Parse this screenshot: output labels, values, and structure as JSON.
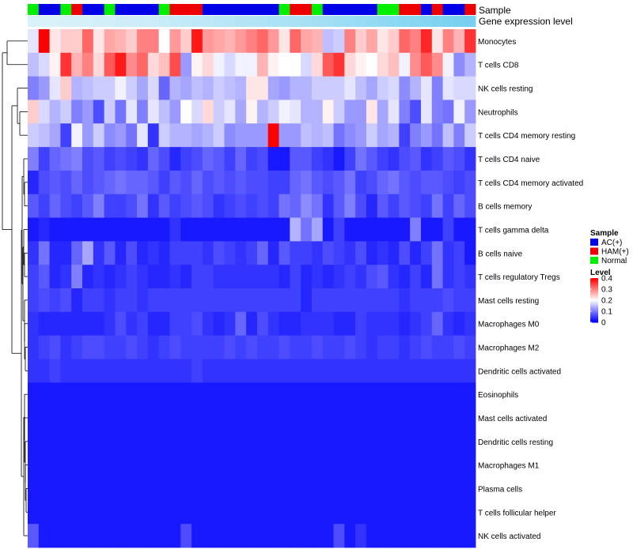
{
  "chart_data": {
    "type": "heatmap",
    "title": "",
    "annotation_labels": {
      "sample": "Sample",
      "gene_expression": "Gene expression level"
    },
    "rows": [
      "Monocytes",
      "T cells CD8",
      "NK cells resting",
      "Neutrophils",
      "T cells CD4 memory resting",
      "T cells CD4 naive",
      "T cells CD4 memory activated",
      "B cells memory",
      "T cells gamma delta",
      "B cells naive",
      "T cells regulatory  Tregs",
      "Mast cells resting",
      "Macrophages M0",
      "Macrophages M2",
      "Dendritic cells activated",
      "Eosinophils",
      "Mast cells activated",
      "Dendritic cells resting",
      "Macrophages M1",
      "Plasma cells",
      "T cells follicular helper",
      "NK cells activated"
    ],
    "sample_groups": [
      "Normal",
      "AC(+)",
      "AC(+)",
      "Normal",
      "HAM(+)",
      "AC(+)",
      "AC(+)",
      "Normal",
      "AC(+)",
      "AC(+)",
      "AC(+)",
      "AC(+)",
      "Normal",
      "HAM(+)",
      "HAM(+)",
      "HAM(+)",
      "AC(+)",
      "AC(+)",
      "AC(+)",
      "AC(+)",
      "AC(+)",
      "AC(+)",
      "AC(+)",
      "Normal",
      "HAM(+)",
      "HAM(+)",
      "Normal",
      "AC(+)",
      "AC(+)",
      "AC(+)",
      "AC(+)",
      "AC(+)",
      "Normal",
      "Normal",
      "HAM(+)",
      "HAM(+)",
      "AC(+)",
      "HAM(+)",
      "AC(+)",
      "AC(+)",
      "HAM(+)"
    ],
    "expression_level": [
      0.02,
      0.02,
      0.02,
      0.03,
      0.03,
      0.03,
      0.04,
      0.04,
      0.05,
      0.05,
      0.06,
      0.06,
      0.07,
      0.08,
      0.09,
      0.1,
      0.1,
      0.11,
      0.12,
      0.13,
      0.13,
      0.14,
      0.15,
      0.15,
      0.16,
      0.17,
      0.18,
      0.18,
      0.19,
      0.2,
      0.21,
      0.22,
      0.23,
      0.24,
      0.25,
      0.26,
      0.27,
      0.28,
      0.29,
      0.3,
      0.31
    ],
    "values": [
      [
        0.18,
        0.4,
        0.22,
        0.24,
        0.24,
        0.32,
        0.22,
        0.27,
        0.26,
        0.24,
        0.3,
        0.3,
        0.2,
        0.28,
        0.24,
        0.38,
        0.28,
        0.27,
        0.26,
        0.28,
        0.3,
        0.32,
        0.28,
        0.22,
        0.32,
        0.27,
        0.26,
        0.15,
        0.16,
        0.3,
        0.24,
        0.27,
        0.22,
        0.24,
        0.32,
        0.3,
        0.37,
        0.22,
        0.3,
        0.26,
        0.36
      ],
      [
        0.15,
        0.17,
        0.21,
        0.36,
        0.26,
        0.3,
        0.23,
        0.33,
        0.38,
        0.29,
        0.32,
        0.23,
        0.25,
        0.34,
        0.12,
        0.21,
        0.23,
        0.19,
        0.17,
        0.19,
        0.19,
        0.26,
        0.21,
        0.2,
        0.2,
        0.17,
        0.23,
        0.33,
        0.36,
        0.23,
        0.21,
        0.2,
        0.23,
        0.25,
        0.19,
        0.29,
        0.33,
        0.29,
        0.19,
        0.11,
        0.14
      ],
      [
        0.1,
        0.12,
        0.18,
        0.24,
        0.14,
        0.15,
        0.16,
        0.16,
        0.19,
        0.16,
        0.13,
        0.17,
        0.08,
        0.14,
        0.13,
        0.15,
        0.14,
        0.16,
        0.15,
        0.14,
        0.22,
        0.22,
        0.13,
        0.12,
        0.14,
        0.14,
        0.16,
        0.16,
        0.16,
        0.18,
        0.15,
        0.13,
        0.16,
        0.17,
        0.11,
        0.14,
        0.18,
        0.1,
        0.18,
        0.17,
        0.17
      ],
      [
        0.24,
        0.17,
        0.14,
        0.16,
        0.1,
        0.12,
        0.06,
        0.16,
        0.09,
        0.18,
        0.1,
        0.18,
        0.15,
        0.12,
        0.2,
        0.17,
        0.23,
        0.16,
        0.18,
        0.13,
        0.21,
        0.14,
        0.16,
        0.19,
        0.18,
        0.14,
        0.14,
        0.21,
        0.16,
        0.12,
        0.12,
        0.22,
        0.13,
        0.18,
        0.1,
        0.06,
        0.18,
        0.1,
        0.09,
        0.19,
        0.12
      ],
      [
        0.16,
        0.15,
        0.13,
        0.05,
        0.19,
        0.12,
        0.16,
        0.11,
        0.12,
        0.09,
        0.18,
        0.04,
        0.16,
        0.14,
        0.14,
        0.13,
        0.14,
        0.16,
        0.11,
        0.12,
        0.12,
        0.12,
        0.4,
        0.12,
        0.12,
        0.15,
        0.14,
        0.15,
        0.09,
        0.11,
        0.12,
        0.16,
        0.13,
        0.14,
        0.05,
        0.1,
        0.12,
        0.09,
        0.15,
        0.1,
        0.16
      ],
      [
        0.1,
        0.05,
        0.08,
        0.09,
        0.1,
        0.06,
        0.07,
        0.05,
        0.06,
        0.05,
        0.04,
        0.08,
        0.06,
        0.03,
        0.05,
        0.06,
        0.08,
        0.07,
        0.05,
        0.08,
        0.05,
        0.06,
        0.02,
        0.02,
        0.07,
        0.07,
        0.05,
        0.04,
        0.02,
        0.05,
        0.09,
        0.07,
        0.05,
        0.04,
        0.06,
        0.07,
        0.04,
        0.05,
        0.07,
        0.06,
        0.04
      ],
      [
        0.03,
        0.06,
        0.07,
        0.06,
        0.08,
        0.06,
        0.07,
        0.08,
        0.09,
        0.08,
        0.08,
        0.07,
        0.05,
        0.07,
        0.06,
        0.08,
        0.06,
        0.07,
        0.06,
        0.07,
        0.06,
        0.06,
        0.05,
        0.05,
        0.08,
        0.09,
        0.07,
        0.06,
        0.07,
        0.09,
        0.05,
        0.06,
        0.08,
        0.09,
        0.07,
        0.06,
        0.07,
        0.07,
        0.06,
        0.05,
        0.06
      ],
      [
        0.07,
        0.05,
        0.08,
        0.06,
        0.05,
        0.07,
        0.1,
        0.05,
        0.05,
        0.06,
        0.09,
        0.04,
        0.07,
        0.05,
        0.06,
        0.07,
        0.06,
        0.04,
        0.05,
        0.06,
        0.05,
        0.06,
        0.05,
        0.09,
        0.08,
        0.11,
        0.09,
        0.04,
        0.07,
        0.1,
        0.06,
        0.03,
        0.07,
        0.05,
        0.07,
        0.06,
        0.05,
        0.09,
        0.05,
        0.08,
        0.06
      ],
      [
        0.02,
        0.03,
        0.02,
        0.02,
        0.02,
        0.02,
        0.02,
        0.02,
        0.02,
        0.02,
        0.02,
        0.02,
        0.02,
        0.04,
        0.02,
        0.02,
        0.02,
        0.02,
        0.02,
        0.02,
        0.02,
        0.02,
        0.02,
        0.02,
        0.14,
        0.09,
        0.13,
        0.02,
        0.05,
        0.02,
        0.02,
        0.02,
        0.02,
        0.02,
        0.02,
        0.1,
        0.02,
        0.02,
        0.05,
        0.02,
        0.02
      ],
      [
        0.04,
        0.09,
        0.03,
        0.03,
        0.08,
        0.13,
        0.04,
        0.07,
        0.03,
        0.06,
        0.03,
        0.04,
        0.03,
        0.05,
        0.05,
        0.05,
        0.04,
        0.06,
        0.05,
        0.04,
        0.05,
        0.08,
        0.03,
        0.07,
        0.05,
        0.05,
        0.04,
        0.06,
        0.05,
        0.04,
        0.06,
        0.03,
        0.04,
        0.03,
        0.06,
        0.03,
        0.05,
        0.09,
        0.04,
        0.05,
        0.02
      ],
      [
        0.05,
        0.07,
        0.03,
        0.04,
        0.1,
        0.03,
        0.04,
        0.03,
        0.04,
        0.05,
        0.04,
        0.03,
        0.03,
        0.04,
        0.03,
        0.05,
        0.05,
        0.04,
        0.04,
        0.04,
        0.04,
        0.04,
        0.04,
        0.03,
        0.05,
        0.03,
        0.04,
        0.03,
        0.04,
        0.05,
        0.04,
        0.06,
        0.07,
        0.04,
        0.03,
        0.05,
        0.03,
        0.09,
        0.04,
        0.05,
        0.04
      ],
      [
        0.05,
        0.06,
        0.05,
        0.06,
        0.03,
        0.05,
        0.05,
        0.04,
        0.05,
        0.05,
        0.04,
        0.05,
        0.05,
        0.05,
        0.05,
        0.05,
        0.05,
        0.05,
        0.05,
        0.05,
        0.05,
        0.05,
        0.05,
        0.05,
        0.05,
        0.03,
        0.05,
        0.05,
        0.05,
        0.05,
        0.05,
        0.05,
        0.05,
        0.05,
        0.04,
        0.05,
        0.05,
        0.05,
        0.06,
        0.05,
        0.05
      ],
      [
        0.04,
        0.03,
        0.03,
        0.03,
        0.03,
        0.03,
        0.03,
        0.04,
        0.06,
        0.04,
        0.05,
        0.03,
        0.03,
        0.05,
        0.05,
        0.06,
        0.04,
        0.03,
        0.04,
        0.08,
        0.03,
        0.06,
        0.04,
        0.03,
        0.03,
        0.04,
        0.04,
        0.04,
        0.03,
        0.03,
        0.05,
        0.04,
        0.04,
        0.04,
        0.03,
        0.04,
        0.05,
        0.08,
        0.04,
        0.03,
        0.04
      ],
      [
        0.04,
        0.05,
        0.06,
        0.04,
        0.05,
        0.06,
        0.06,
        0.05,
        0.05,
        0.06,
        0.05,
        0.04,
        0.05,
        0.06,
        0.05,
        0.05,
        0.05,
        0.05,
        0.06,
        0.05,
        0.06,
        0.05,
        0.05,
        0.06,
        0.05,
        0.05,
        0.06,
        0.05,
        0.05,
        0.06,
        0.05,
        0.04,
        0.05,
        0.05,
        0.04,
        0.05,
        0.06,
        0.05,
        0.05,
        0.06,
        0.05
      ],
      [
        0.04,
        0.04,
        0.05,
        0.04,
        0.04,
        0.04,
        0.04,
        0.04,
        0.04,
        0.04,
        0.04,
        0.04,
        0.04,
        0.04,
        0.04,
        0.05,
        0.04,
        0.04,
        0.04,
        0.04,
        0.04,
        0.04,
        0.04,
        0.04,
        0.04,
        0.04,
        0.04,
        0.04,
        0.04,
        0.04,
        0.04,
        0.04,
        0.04,
        0.04,
        0.04,
        0.04,
        0.04,
        0.04,
        0.04,
        0.04,
        0.04
      ],
      [
        0.02,
        0.02,
        0.02,
        0.02,
        0.02,
        0.02,
        0.02,
        0.02,
        0.02,
        0.02,
        0.02,
        0.02,
        0.02,
        0.02,
        0.02,
        0.02,
        0.02,
        0.02,
        0.02,
        0.02,
        0.02,
        0.02,
        0.02,
        0.02,
        0.02,
        0.02,
        0.02,
        0.02,
        0.02,
        0.02,
        0.02,
        0.02,
        0.02,
        0.02,
        0.02,
        0.02,
        0.02,
        0.02,
        0.02,
        0.02,
        0.02
      ],
      [
        0.02,
        0.02,
        0.02,
        0.02,
        0.02,
        0.02,
        0.02,
        0.02,
        0.02,
        0.02,
        0.02,
        0.02,
        0.02,
        0.02,
        0.02,
        0.02,
        0.02,
        0.02,
        0.02,
        0.02,
        0.02,
        0.02,
        0.02,
        0.02,
        0.02,
        0.02,
        0.02,
        0.02,
        0.02,
        0.02,
        0.02,
        0.02,
        0.02,
        0.02,
        0.02,
        0.02,
        0.02,
        0.02,
        0.02,
        0.02,
        0.02
      ],
      [
        0.02,
        0.02,
        0.02,
        0.02,
        0.02,
        0.02,
        0.02,
        0.02,
        0.02,
        0.02,
        0.02,
        0.02,
        0.02,
        0.02,
        0.02,
        0.02,
        0.02,
        0.02,
        0.02,
        0.02,
        0.02,
        0.02,
        0.02,
        0.02,
        0.02,
        0.02,
        0.02,
        0.02,
        0.02,
        0.02,
        0.02,
        0.02,
        0.02,
        0.02,
        0.02,
        0.02,
        0.02,
        0.02,
        0.02,
        0.02,
        0.02
      ],
      [
        0.02,
        0.02,
        0.02,
        0.02,
        0.02,
        0.02,
        0.02,
        0.02,
        0.02,
        0.02,
        0.02,
        0.02,
        0.02,
        0.02,
        0.02,
        0.02,
        0.02,
        0.02,
        0.02,
        0.02,
        0.02,
        0.02,
        0.02,
        0.02,
        0.02,
        0.02,
        0.02,
        0.02,
        0.02,
        0.02,
        0.02,
        0.02,
        0.02,
        0.02,
        0.02,
        0.02,
        0.02,
        0.02,
        0.02,
        0.02,
        0.02
      ],
      [
        0.02,
        0.02,
        0.02,
        0.02,
        0.02,
        0.02,
        0.02,
        0.02,
        0.02,
        0.02,
        0.02,
        0.02,
        0.02,
        0.02,
        0.02,
        0.02,
        0.02,
        0.02,
        0.02,
        0.02,
        0.02,
        0.02,
        0.02,
        0.02,
        0.02,
        0.02,
        0.02,
        0.02,
        0.02,
        0.02,
        0.02,
        0.02,
        0.02,
        0.02,
        0.02,
        0.02,
        0.02,
        0.02,
        0.02,
        0.02,
        0.02
      ],
      [
        0.02,
        0.02,
        0.02,
        0.02,
        0.02,
        0.02,
        0.02,
        0.02,
        0.02,
        0.02,
        0.02,
        0.02,
        0.02,
        0.02,
        0.02,
        0.02,
        0.02,
        0.02,
        0.02,
        0.02,
        0.02,
        0.02,
        0.02,
        0.02,
        0.02,
        0.02,
        0.02,
        0.02,
        0.02,
        0.02,
        0.02,
        0.02,
        0.02,
        0.02,
        0.02,
        0.02,
        0.02,
        0.02,
        0.02,
        0.02,
        0.02
      ],
      [
        0.07,
        0.02,
        0.02,
        0.02,
        0.02,
        0.02,
        0.02,
        0.02,
        0.02,
        0.02,
        0.02,
        0.02,
        0.02,
        0.02,
        0.06,
        0.02,
        0.02,
        0.02,
        0.02,
        0.02,
        0.02,
        0.02,
        0.02,
        0.02,
        0.02,
        0.02,
        0.02,
        0.02,
        0.06,
        0.02,
        0.04,
        0.02,
        0.02,
        0.02,
        0.02,
        0.02,
        0.02,
        0.02,
        0.02,
        0.02,
        0.02
      ]
    ],
    "legend": {
      "sample_title": "Sample",
      "groups": [
        {
          "name": "AC(+)",
          "color": "#0000e6"
        },
        {
          "name": "HAM(+)",
          "color": "#ee0000"
        },
        {
          "name": "Normal",
          "color": "#00ee00"
        }
      ],
      "level_title": "Level",
      "level_ticks": [
        "0.4",
        "0.3",
        "0.2",
        "0.1",
        "0"
      ],
      "level_tick_values": [
        0.4,
        0.3,
        0.2,
        0.1,
        0
      ],
      "level_range": [
        0,
        0.4
      ],
      "expression_range": [
        0,
        0.4
      ]
    },
    "colors": {
      "low": "#0000ff",
      "mid": "#ffffff",
      "high": "#ff0000",
      "expr_low": "#e0f3fa",
      "expr_high": "#56c6ee"
    }
  }
}
